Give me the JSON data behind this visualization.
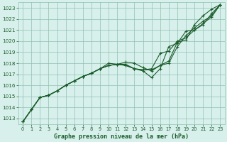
{
  "title": "Graphe pression niveau de la mer (hPa)",
  "bg_color": "#d8f0ec",
  "grid_color": "#90c0b0",
  "line_color": "#1a5c2a",
  "marker_color": "#1a5c2a",
  "xlim": [
    -0.5,
    23.5
  ],
  "ylim": [
    1012.5,
    1023.5
  ],
  "xticks": [
    0,
    1,
    2,
    3,
    4,
    5,
    6,
    7,
    8,
    9,
    10,
    11,
    12,
    13,
    14,
    15,
    16,
    17,
    18,
    19,
    20,
    21,
    22,
    23
  ],
  "yticks": [
    1013,
    1014,
    1015,
    1016,
    1017,
    1018,
    1019,
    1020,
    1021,
    1022,
    1023
  ],
  "series": [
    [
      1012.7,
      1013.8,
      1014.9,
      1015.1,
      1015.5,
      1016.0,
      1016.4,
      1016.8,
      1017.1,
      1017.5,
      1018.0,
      1017.9,
      1018.1,
      1018.0,
      1017.6,
      1017.3,
      1017.8,
      1018.2,
      1019.9,
      1020.1,
      1021.5,
      1022.3,
      1022.9,
      1023.3
    ],
    [
      1012.7,
      1013.8,
      1014.9,
      1015.1,
      1015.5,
      1016.0,
      1016.4,
      1016.8,
      1017.1,
      1017.5,
      1017.8,
      1017.9,
      1017.9,
      1017.5,
      1017.4,
      1017.4,
      1017.8,
      1018.0,
      1019.5,
      1020.5,
      1021.2,
      1021.8,
      1022.3,
      1023.3
    ],
    [
      1012.7,
      1013.8,
      1014.9,
      1015.1,
      1015.5,
      1016.0,
      1016.4,
      1016.8,
      1017.1,
      1017.5,
      1017.8,
      1017.9,
      1017.8,
      1017.5,
      1017.3,
      1016.7,
      1017.5,
      1019.5,
      1019.8,
      1020.9,
      1021.0,
      1021.5,
      1022.5,
      1023.3
    ],
    [
      1012.7,
      1013.8,
      1014.9,
      1015.1,
      1015.5,
      1016.0,
      1016.4,
      1016.8,
      1017.1,
      1017.5,
      1017.8,
      1017.9,
      1017.8,
      1017.5,
      1017.4,
      1017.5,
      1018.9,
      1019.1,
      1020.0,
      1020.3,
      1021.0,
      1021.6,
      1022.2,
      1023.3
    ]
  ]
}
